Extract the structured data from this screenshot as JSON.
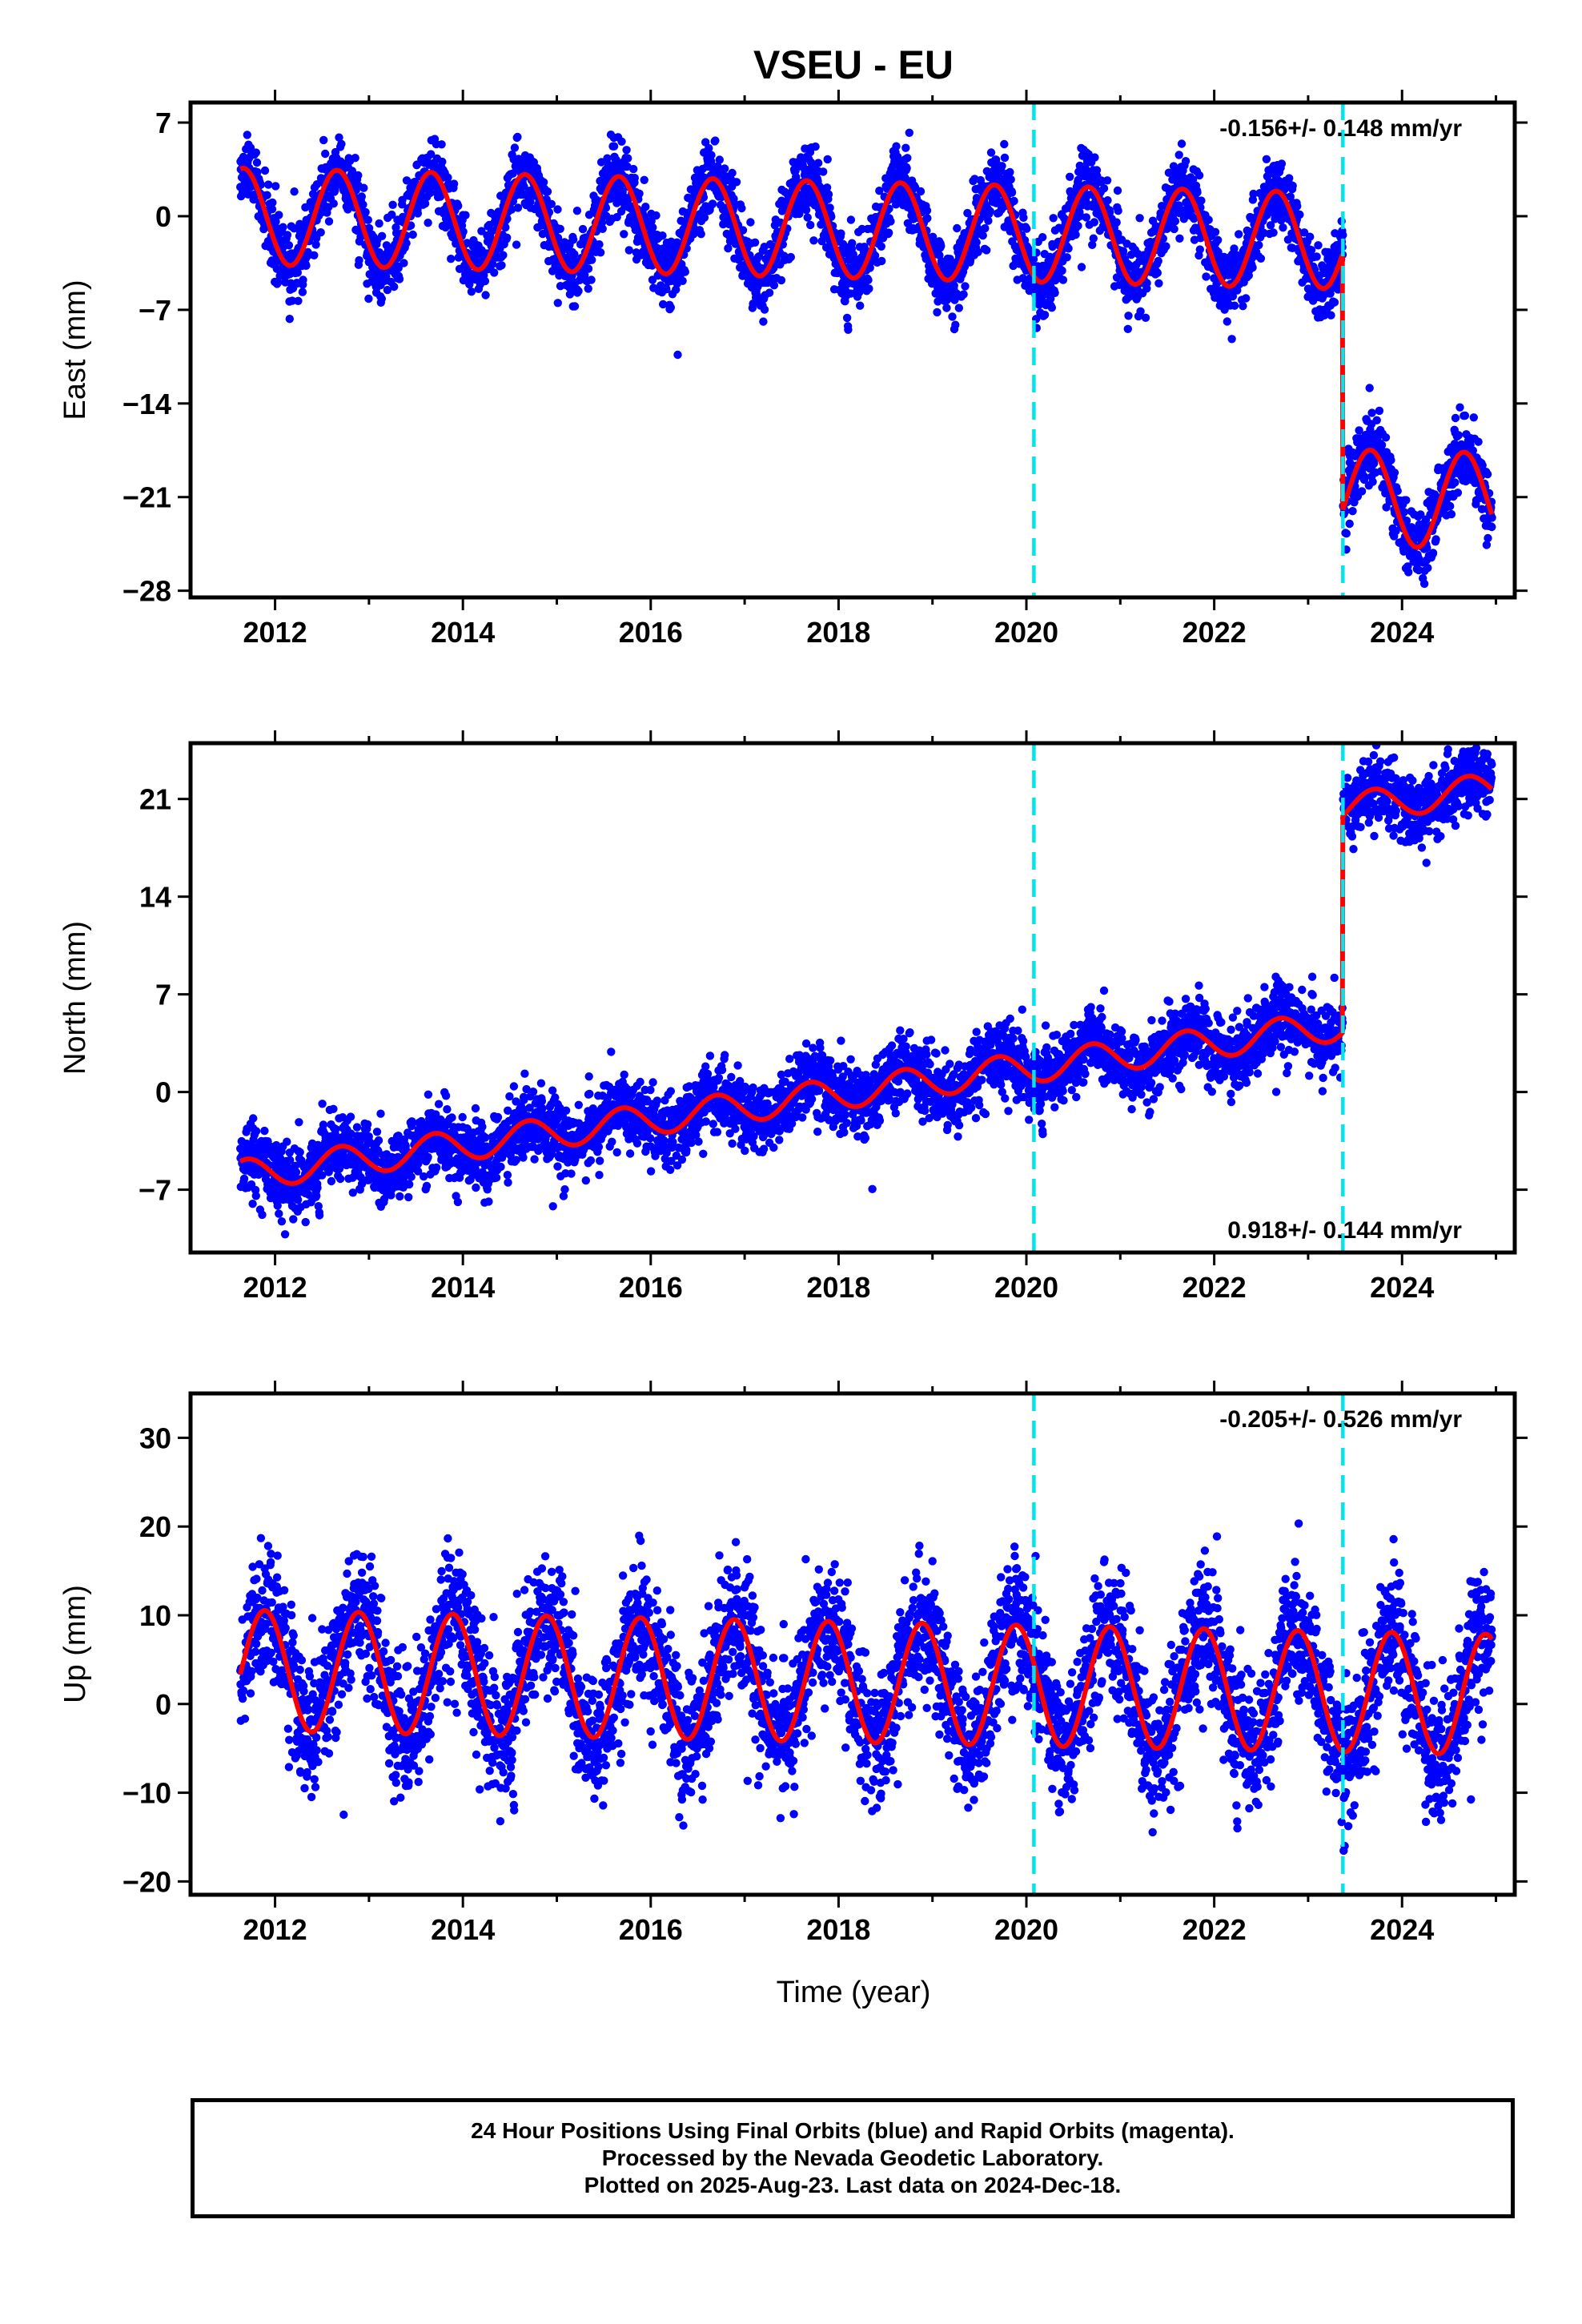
{
  "chart_data": {
    "title": "VSEU - EU",
    "xlabel": "Time (year)",
    "x_ticks": [
      "2012",
      "2014",
      "2016",
      "2018",
      "2020",
      "2022",
      "2024"
    ],
    "xlim": [
      2011.1,
      2025.2
    ],
    "vertical_markers": [
      2020.08,
      2023.37
    ],
    "colors": {
      "points": "#0000ff",
      "model": "#ff0000",
      "markers": "#00e5ee",
      "frame": "#000000"
    },
    "panels": [
      {
        "type": "scatter",
        "name": "east",
        "ylabel": "East (mm)",
        "ylim": [
          -28.5,
          8.5
        ],
        "y_ticks": [
          "7",
          "0",
          "−7",
          "−14",
          "−21",
          "−28"
        ],
        "y_tick_values": [
          7,
          0,
          -7,
          -14,
          -21,
          -28
        ],
        "rate": "-0.156+/- 0.148 mm/yr",
        "rate_position": "top-right",
        "model": {
          "offset": 0,
          "rate": -0.156,
          "annual_amp": 3.6,
          "phase": 0.41,
          "step_year": 2023.37,
          "step": -19.2
        },
        "noise": 1.3,
        "x_start": 2011.63,
        "x_end": 2024.96
      },
      {
        "type": "scatter",
        "name": "north",
        "ylabel": "North (mm)",
        "ylim": [
          -11.5,
          25
        ],
        "y_ticks": [
          "21",
          "14",
          "7",
          "0",
          "−7"
        ],
        "y_tick_values": [
          21,
          14,
          7,
          0,
          -7
        ],
        "rate": "0.918+/- 0.144 mm/yr",
        "rate_position": "bottom-right",
        "model": {
          "offset": -6.0,
          "rate": 0.918,
          "annual_amp": 1.1,
          "phase": 0.45,
          "step_year": 2023.37,
          "step": 15.5
        },
        "noise": 1.2,
        "x_start": 2011.63,
        "x_end": 2024.96
      },
      {
        "type": "scatter",
        "name": "up",
        "ylabel": "Up (mm)",
        "ylim": [
          -21.5,
          35
        ],
        "y_ticks": [
          "30",
          "20",
          "10",
          "0",
          "−10",
          "−20"
        ],
        "y_tick_values": [
          30,
          20,
          10,
          0,
          -10,
          -20
        ],
        "rate": "-0.205+/- 0.526 mm/yr",
        "rate_position": "top-right",
        "model": {
          "offset": 3.8,
          "rate": -0.205,
          "annual_amp": 6.8,
          "phase": 0.64,
          "step_year": 2023.37,
          "step": 0
        },
        "noise": 3.6,
        "x_start": 2011.63,
        "x_end": 2024.96
      }
    ]
  },
  "footer": {
    "line1": "24 Hour Positions Using Final Orbits (blue) and Rapid Orbits (magenta).",
    "line2": "Processed by the Nevada Geodetic Laboratory.",
    "line3": "Plotted on 2025-Aug-23. Last data on 2024-Dec-18."
  }
}
